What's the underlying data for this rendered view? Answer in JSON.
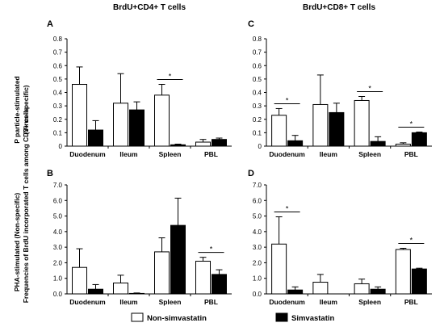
{
  "column_titles": [
    "BrdU+CD4+ T cells",
    "BrdU+CD8+ T cells"
  ],
  "row_labels": {
    "top_line1": "P particle-stimulated",
    "top_line2": "(Virus-specific)",
    "bottom": "PHA-stimulated  (Non-specific)"
  },
  "ylabel": "Frequencies of BrdU incorporated T cells among CD3+ cells",
  "legend": [
    {
      "name": "Non-simvastatin",
      "color": "#ffffff"
    },
    {
      "name": "Simvastatin",
      "color": "#000000"
    }
  ],
  "chart_data": [
    {
      "panel": "A",
      "type": "bar",
      "categories": [
        "Duodenum",
        "Ileum",
        "Spleen",
        "PBL"
      ],
      "yticks": [
        "0",
        "0.1",
        "0.2",
        "0.3",
        "0.4",
        "0.5",
        "0.6",
        "0.7",
        "0.8"
      ],
      "ylim": [
        0,
        0.8
      ],
      "series": [
        {
          "name": "Non-simvastatin",
          "values": [
            0.46,
            0.32,
            0.38,
            0.03
          ],
          "errors": [
            0.13,
            0.22,
            0.08,
            0.02
          ]
        },
        {
          "name": "Simvastatin",
          "values": [
            0.12,
            0.27,
            0.01,
            0.05
          ],
          "errors": [
            0.07,
            0.06,
            0.005,
            0.01
          ]
        }
      ],
      "significance": [
        {
          "category": 2,
          "label": "*"
        }
      ]
    },
    {
      "panel": "C",
      "type": "bar",
      "categories": [
        "Duodenum",
        "Ileum",
        "Spleen",
        "PBL"
      ],
      "yticks": [
        "0",
        "0.1",
        "0.2",
        "0.3",
        "0.4",
        "0.5",
        "0.6",
        "0.7",
        "0.8"
      ],
      "ylim": [
        0,
        0.8
      ],
      "series": [
        {
          "name": "Non-simvastatin",
          "values": [
            0.23,
            0.31,
            0.34,
            0.015
          ],
          "errors": [
            0.05,
            0.22,
            0.03,
            0.01
          ]
        },
        {
          "name": "Simvastatin",
          "values": [
            0.04,
            0.25,
            0.035,
            0.1
          ],
          "errors": [
            0.04,
            0.07,
            0.035,
            0.005
          ]
        }
      ],
      "significance": [
        {
          "category": 0,
          "label": "*"
        },
        {
          "category": 2,
          "label": "*"
        },
        {
          "category": 3,
          "label": "*"
        }
      ]
    },
    {
      "panel": "B",
      "type": "bar",
      "categories": [
        "Duodenum",
        "Ileum",
        "Spleen",
        "PBL"
      ],
      "yticks": [
        "0.0",
        "1.0",
        "2.0",
        "3.0",
        "4.0",
        "5.0",
        "6.0",
        "7.0"
      ],
      "ylim": [
        0,
        7
      ],
      "series": [
        {
          "name": "Non-simvastatin",
          "values": [
            1.7,
            0.7,
            2.7,
            2.1
          ],
          "errors": [
            1.2,
            0.5,
            0.9,
            0.25
          ]
        },
        {
          "name": "Simvastatin",
          "values": [
            0.3,
            0.03,
            4.4,
            1.25
          ],
          "errors": [
            0.3,
            0.03,
            1.75,
            0.3
          ]
        }
      ],
      "significance": [
        {
          "category": 3,
          "label": "*"
        }
      ]
    },
    {
      "panel": "D",
      "type": "bar",
      "categories": [
        "Duodenum",
        "Ileum",
        "Spleen",
        "PBL"
      ],
      "yticks": [
        "0.0",
        "1.0",
        "2.0",
        "3.0",
        "4.0",
        "5.0",
        "6.0",
        "7.0"
      ],
      "ylim": [
        0,
        7
      ],
      "series": [
        {
          "name": "Non-simvastatin",
          "values": [
            3.2,
            0.75,
            0.65,
            2.85
          ],
          "errors": [
            1.75,
            0.5,
            0.3,
            0.08
          ]
        },
        {
          "name": "Simvastatin",
          "values": [
            0.25,
            0.0,
            0.3,
            1.6
          ],
          "errors": [
            0.2,
            0.0,
            0.15,
            0.05
          ]
        }
      ],
      "significance": [
        {
          "category": 0,
          "label": "*"
        },
        {
          "category": 3,
          "label": "*"
        }
      ]
    }
  ]
}
